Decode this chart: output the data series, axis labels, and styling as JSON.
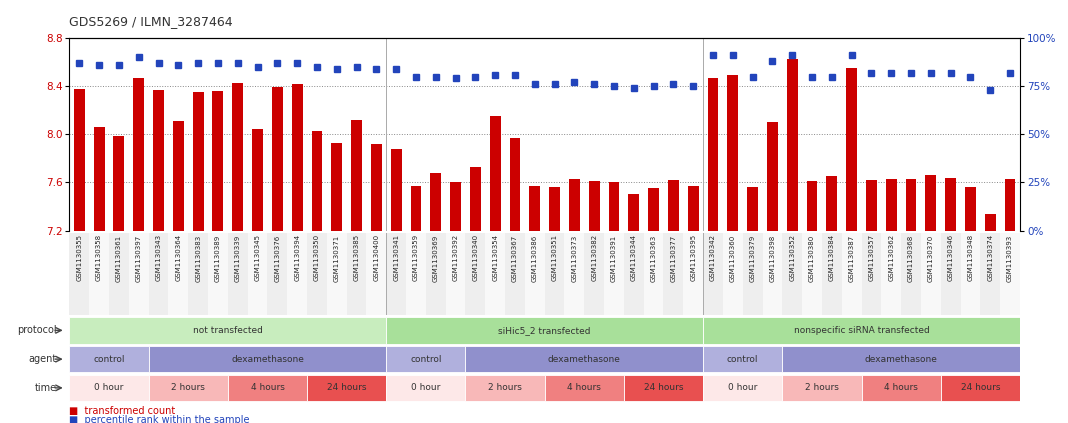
{
  "title": "GDS5269 / ILMN_3287464",
  "samples": [
    "GSM1130355",
    "GSM1130358",
    "GSM1130361",
    "GSM1130397",
    "GSM1130343",
    "GSM1130364",
    "GSM1130383",
    "GSM1130389",
    "GSM1130339",
    "GSM1130345",
    "GSM1130376",
    "GSM1130394",
    "GSM1130350",
    "GSM1130371",
    "GSM1130385",
    "GSM1130400",
    "GSM1130341",
    "GSM1130359",
    "GSM1130369",
    "GSM1130392",
    "GSM1130340",
    "GSM1130354",
    "GSM1130367",
    "GSM1130386",
    "GSM1130351",
    "GSM1130373",
    "GSM1130382",
    "GSM1130391",
    "GSM1130344",
    "GSM1130363",
    "GSM1130377",
    "GSM1130395",
    "GSM1130342",
    "GSM1130360",
    "GSM1130379",
    "GSM1130398",
    "GSM1130352",
    "GSM1130380",
    "GSM1130384",
    "GSM1130387",
    "GSM1130357",
    "GSM1130362",
    "GSM1130368",
    "GSM1130370",
    "GSM1130346",
    "GSM1130348",
    "GSM1130374",
    "GSM1130393"
  ],
  "bar_values": [
    8.38,
    8.06,
    7.99,
    8.47,
    8.37,
    8.11,
    8.35,
    8.36,
    8.43,
    8.04,
    8.39,
    8.42,
    8.03,
    7.93,
    8.12,
    7.92,
    7.88,
    7.57,
    7.68,
    7.6,
    7.73,
    8.15,
    7.97,
    7.57,
    7.56,
    7.63,
    7.61,
    7.6,
    7.5,
    7.55,
    7.62,
    7.57,
    8.47,
    8.49,
    7.56,
    8.1,
    8.63,
    7.61,
    7.65,
    8.55,
    7.62,
    7.63,
    7.63,
    7.66,
    7.64,
    7.56,
    7.34,
    7.63
  ],
  "percentile_values": [
    87,
    86,
    86,
    90,
    87,
    86,
    87,
    87,
    87,
    85,
    87,
    87,
    85,
    84,
    85,
    84,
    84,
    80,
    80,
    79,
    80,
    81,
    81,
    76,
    76,
    77,
    76,
    75,
    74,
    75,
    76,
    75,
    91,
    91,
    80,
    88,
    91,
    80,
    80,
    91,
    82,
    82,
    82,
    82,
    82,
    80,
    73,
    82
  ],
  "ylim_left": [
    7.2,
    8.8
  ],
  "ylim_right": [
    0,
    100
  ],
  "yticks_left": [
    7.2,
    7.6,
    8.0,
    8.4,
    8.8
  ],
  "yticks_right": [
    0,
    25,
    50,
    75,
    100
  ],
  "bar_color": "#cc0000",
  "dot_color": "#2244bb",
  "grid_color": "#888888",
  "protocol_groups": [
    {
      "label": "not transfected",
      "start": 0,
      "end": 16,
      "color": "#c8edbe"
    },
    {
      "label": "siHic5_2 transfected",
      "start": 16,
      "end": 32,
      "color": "#a8e09a"
    },
    {
      "label": "nonspecific siRNA transfected",
      "start": 32,
      "end": 48,
      "color": "#a8e09a"
    }
  ],
  "agent_groups": [
    {
      "label": "control",
      "start": 0,
      "end": 4,
      "color": "#b0b0dd"
    },
    {
      "label": "dexamethasone",
      "start": 4,
      "end": 16,
      "color": "#9090cc"
    },
    {
      "label": "control",
      "start": 16,
      "end": 20,
      "color": "#b0b0dd"
    },
    {
      "label": "dexamethasone",
      "start": 20,
      "end": 32,
      "color": "#9090cc"
    },
    {
      "label": "control",
      "start": 32,
      "end": 36,
      "color": "#b0b0dd"
    },
    {
      "label": "dexamethasone",
      "start": 36,
      "end": 48,
      "color": "#9090cc"
    }
  ],
  "time_groups": [
    {
      "label": "0 hour",
      "start": 0,
      "end": 4,
      "color": "#fde8e8"
    },
    {
      "label": "2 hours",
      "start": 4,
      "end": 8,
      "color": "#f8b8b8"
    },
    {
      "label": "4 hours",
      "start": 8,
      "end": 12,
      "color": "#f08080"
    },
    {
      "label": "24 hours",
      "start": 12,
      "end": 16,
      "color": "#e85050"
    },
    {
      "label": "0 hour",
      "start": 16,
      "end": 20,
      "color": "#fde8e8"
    },
    {
      "label": "2 hours",
      "start": 20,
      "end": 24,
      "color": "#f8b8b8"
    },
    {
      "label": "4 hours",
      "start": 24,
      "end": 28,
      "color": "#f08080"
    },
    {
      "label": "24 hours",
      "start": 28,
      "end": 32,
      "color": "#e85050"
    },
    {
      "label": "0 hour",
      "start": 32,
      "end": 36,
      "color": "#fde8e8"
    },
    {
      "label": "2 hours",
      "start": 36,
      "end": 40,
      "color": "#f8b8b8"
    },
    {
      "label": "4 hours",
      "start": 40,
      "end": 44,
      "color": "#f08080"
    },
    {
      "label": "24 hours",
      "start": 44,
      "end": 48,
      "color": "#e85050"
    }
  ]
}
